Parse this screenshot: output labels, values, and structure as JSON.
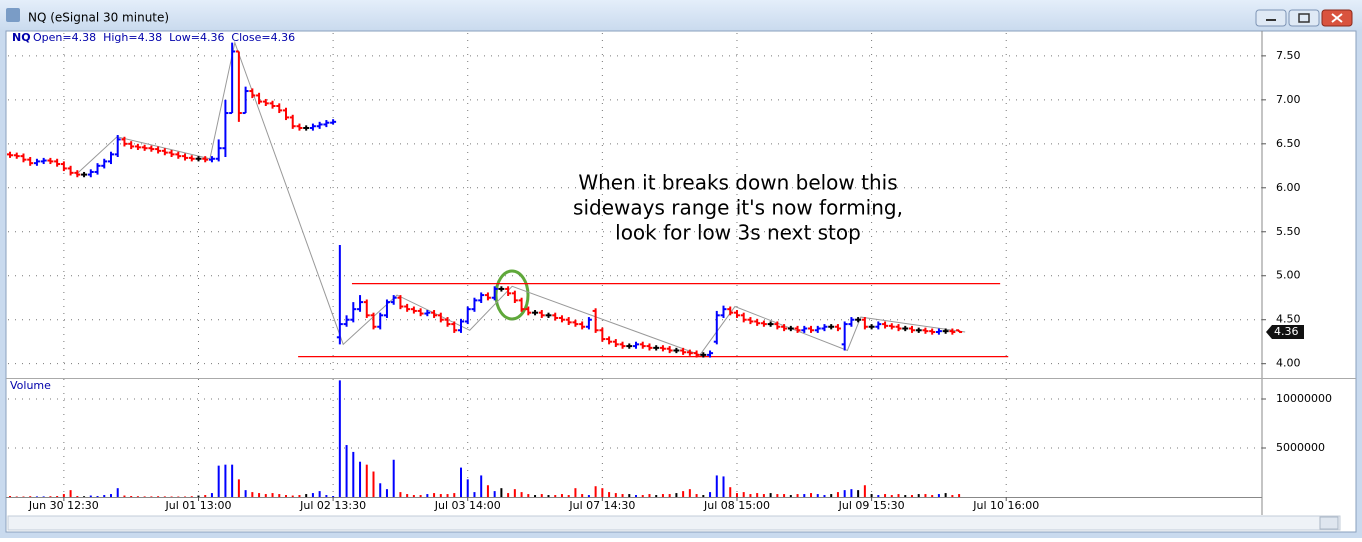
{
  "window": {
    "title": "NQ (eSignal 30 minute)"
  },
  "chart_data": [
    {
      "type": "ohlc",
      "symbol": "NQ",
      "legend": "Open=4.38  High=4.38  Low=4.36  Close=4.36",
      "open": [
        6.38,
        6.37,
        6.36,
        6.32,
        6.28,
        6.3,
        6.31,
        6.3,
        6.27,
        6.22,
        6.17,
        6.15,
        6.15,
        6.18,
        6.25,
        6.3,
        6.38,
        6.55,
        6.5,
        6.47,
        6.46,
        6.45,
        6.44,
        6.42,
        6.4,
        6.38,
        6.36,
        6.34,
        6.33,
        6.33,
        6.32,
        6.33,
        6.45,
        6.85,
        7.55,
        6.85,
        7.1,
        7.05,
        6.98,
        6.96,
        6.93,
        6.88,
        6.8,
        6.7,
        6.68,
        6.68,
        6.7,
        6.72,
        6.74,
        4.3,
        4.45,
        4.5,
        4.62,
        4.7,
        4.55,
        4.42,
        4.55,
        4.7,
        4.75,
        4.65,
        4.62,
        4.6,
        4.57,
        4.58,
        4.55,
        4.5,
        4.45,
        4.38,
        4.48,
        4.62,
        4.72,
        4.78,
        4.75,
        4.85,
        4.85,
        4.8,
        4.72,
        4.62,
        4.58,
        4.58,
        4.55,
        4.55,
        4.52,
        4.5,
        4.47,
        4.45,
        4.42,
        4.6,
        4.38,
        4.28,
        4.25,
        4.22,
        4.2,
        4.2,
        4.22,
        4.2,
        4.18,
        4.18,
        4.17,
        4.15,
        4.15,
        4.13,
        4.12,
        4.1,
        4.1,
        4.25,
        4.55,
        4.62,
        4.58,
        4.55,
        4.5,
        4.48,
        4.46,
        4.45,
        4.45,
        4.42,
        4.4,
        4.4,
        4.38,
        4.4,
        4.38,
        4.4,
        4.42,
        4.42,
        4.22,
        4.45,
        4.5,
        4.5,
        4.42,
        4.42,
        4.45,
        4.43,
        4.42,
        4.4,
        4.4,
        4.38,
        4.38,
        4.37,
        4.36,
        4.37,
        4.37,
        4.38
      ],
      "high": [
        6.41,
        6.4,
        6.39,
        6.35,
        6.33,
        6.34,
        6.34,
        6.33,
        6.3,
        6.25,
        6.2,
        6.18,
        6.21,
        6.28,
        6.33,
        6.41,
        6.6,
        6.58,
        6.53,
        6.5,
        6.49,
        6.48,
        6.47,
        6.45,
        6.43,
        6.41,
        6.39,
        6.37,
        6.36,
        6.36,
        6.36,
        6.55,
        7.0,
        7.65,
        7.55,
        7.15,
        7.13,
        7.08,
        7.01,
        6.99,
        6.96,
        6.91,
        6.83,
        6.73,
        6.71,
        6.73,
        6.75,
        6.77,
        6.78,
        5.35,
        4.55,
        4.7,
        4.78,
        4.73,
        4.58,
        4.58,
        4.73,
        4.78,
        4.78,
        4.68,
        4.65,
        4.63,
        4.61,
        4.61,
        4.58,
        4.53,
        4.48,
        4.51,
        4.65,
        4.75,
        4.81,
        4.81,
        4.88,
        4.88,
        4.88,
        4.83,
        4.75,
        4.65,
        4.61,
        4.61,
        4.58,
        4.58,
        4.55,
        4.53,
        4.5,
        4.48,
        4.53,
        4.63,
        4.41,
        4.31,
        4.28,
        4.25,
        4.23,
        4.25,
        4.25,
        4.23,
        4.21,
        4.21,
        4.2,
        4.18,
        4.18,
        4.16,
        4.15,
        4.13,
        4.15,
        4.6,
        4.66,
        4.65,
        4.61,
        4.58,
        4.53,
        4.51,
        4.49,
        4.48,
        4.48,
        4.45,
        4.43,
        4.43,
        4.43,
        4.43,
        4.43,
        4.45,
        4.45,
        4.45,
        4.48,
        4.53,
        4.53,
        4.53,
        4.45,
        4.48,
        4.48,
        4.46,
        4.45,
        4.43,
        4.43,
        4.41,
        4.41,
        4.4,
        4.4,
        4.4,
        4.4,
        4.38
      ],
      "low": [
        6.34,
        6.33,
        6.29,
        6.25,
        6.25,
        6.27,
        6.27,
        6.24,
        6.19,
        6.14,
        6.12,
        6.12,
        6.12,
        6.15,
        6.22,
        6.27,
        6.35,
        6.47,
        6.44,
        6.43,
        6.42,
        6.41,
        6.39,
        6.37,
        6.35,
        6.33,
        6.31,
        6.3,
        6.3,
        6.29,
        6.29,
        6.3,
        6.35,
        6.85,
        6.75,
        6.85,
        7.02,
        6.95,
        6.93,
        6.9,
        6.85,
        6.77,
        6.67,
        6.65,
        6.65,
        6.65,
        6.67,
        6.69,
        6.72,
        4.22,
        4.42,
        4.47,
        4.59,
        4.52,
        4.39,
        4.39,
        4.52,
        4.67,
        4.62,
        4.59,
        4.57,
        4.54,
        4.54,
        4.52,
        4.47,
        4.42,
        4.35,
        4.35,
        4.45,
        4.59,
        4.69,
        4.72,
        4.72,
        4.82,
        4.77,
        4.69,
        4.59,
        4.55,
        4.55,
        4.52,
        4.52,
        4.49,
        4.47,
        4.44,
        4.42,
        4.39,
        4.39,
        4.35,
        4.25,
        4.22,
        4.19,
        4.17,
        4.17,
        4.17,
        4.17,
        4.15,
        4.15,
        4.14,
        4.12,
        4.12,
        4.1,
        4.09,
        4.07,
        4.07,
        4.07,
        4.22,
        4.52,
        4.55,
        4.52,
        4.47,
        4.45,
        4.43,
        4.42,
        4.42,
        4.39,
        4.37,
        4.37,
        4.35,
        4.35,
        4.35,
        4.35,
        4.37,
        4.39,
        4.37,
        4.15,
        4.42,
        4.47,
        4.39,
        4.39,
        4.39,
        4.4,
        4.39,
        4.37,
        4.37,
        4.35,
        4.35,
        4.34,
        4.33,
        4.33,
        4.34,
        4.33,
        4.36
      ],
      "close": [
        6.37,
        6.36,
        6.32,
        6.28,
        6.3,
        6.31,
        6.3,
        6.27,
        6.22,
        6.17,
        6.15,
        6.15,
        6.18,
        6.25,
        6.3,
        6.38,
        6.55,
        6.5,
        6.47,
        6.46,
        6.45,
        6.44,
        6.42,
        6.4,
        6.38,
        6.36,
        6.34,
        6.33,
        6.33,
        6.32,
        6.33,
        6.45,
        6.85,
        7.55,
        6.85,
        7.1,
        7.05,
        6.98,
        6.96,
        6.93,
        6.88,
        6.8,
        6.7,
        6.68,
        6.68,
        6.7,
        6.72,
        6.74,
        6.75,
        4.45,
        4.5,
        4.62,
        4.7,
        4.55,
        4.42,
        4.55,
        4.7,
        4.75,
        4.65,
        4.62,
        4.6,
        4.57,
        4.58,
        4.55,
        4.5,
        4.45,
        4.38,
        4.48,
        4.62,
        4.72,
        4.78,
        4.75,
        4.85,
        4.85,
        4.8,
        4.72,
        4.62,
        4.58,
        4.58,
        4.55,
        4.55,
        4.52,
        4.5,
        4.47,
        4.45,
        4.42,
        4.5,
        4.38,
        4.28,
        4.25,
        4.22,
        4.2,
        4.2,
        4.22,
        4.2,
        4.18,
        4.18,
        4.17,
        4.15,
        4.15,
        4.13,
        4.12,
        4.1,
        4.1,
        4.12,
        4.55,
        4.62,
        4.58,
        4.55,
        4.5,
        4.48,
        4.46,
        4.45,
        4.45,
        4.42,
        4.4,
        4.4,
        4.38,
        4.4,
        4.38,
        4.4,
        4.42,
        4.42,
        4.4,
        4.45,
        4.5,
        4.5,
        4.42,
        4.42,
        4.45,
        4.43,
        4.42,
        4.4,
        4.4,
        4.38,
        4.38,
        4.37,
        4.36,
        4.37,
        4.37,
        4.36,
        4.36
      ],
      "up_color": "#0000ff",
      "down_color": "#ff0000",
      "flat_color": "#000000",
      "xlim": [
        -0.3,
        186.0
      ],
      "ylim": [
        3.86,
        7.76
      ],
      "yticks": [
        {
          "value": 4.0,
          "label": "4.00"
        },
        {
          "value": 4.5,
          "label": "4.50"
        },
        {
          "value": 5.0,
          "label": "5.00"
        },
        {
          "value": 5.5,
          "label": "5.50"
        },
        {
          "value": 6.0,
          "label": "6.00"
        },
        {
          "value": 6.5,
          "label": "6.50"
        },
        {
          "value": 7.0,
          "label": "7.00"
        },
        {
          "value": 7.5,
          "label": "7.50"
        }
      ],
      "grid": true,
      "last_price": 4.36,
      "hlines": [
        {
          "y": 4.91,
          "x": [
            50.8,
            147.1
          ],
          "color": "#ff0000"
        },
        {
          "y": 4.08,
          "x": [
            42.8,
            148.3
          ],
          "color": "#ff0000"
        }
      ],
      "zigzag": {
        "x": [
          9.8,
          15.9,
          29.7,
          33.4,
          49.5,
          57.5,
          68.3,
          74.6,
          102.5,
          107.7,
          124.4,
          126.4,
          141.9
        ],
        "y": [
          6.15,
          6.58,
          6.33,
          7.65,
          4.22,
          4.78,
          4.38,
          4.88,
          4.1,
          4.65,
          4.15,
          4.53,
          4.36
        ],
        "color": "#999999"
      },
      "annotation": [
        "When it breaks down below this",
        "sideways range it's now forming,",
        "look for low 3s next stop"
      ]
    },
    {
      "type": "bar",
      "title": "Volume",
      "values": [
        100000,
        50000,
        50000,
        80000,
        60000,
        60000,
        80000,
        100000,
        300000,
        700000,
        100000,
        80000,
        150000,
        100000,
        200000,
        300000,
        900000,
        150000,
        100000,
        80000,
        60000,
        60000,
        80000,
        60000,
        50000,
        50000,
        50000,
        80000,
        150000,
        200000,
        400000,
        3200000,
        3300000,
        3300000,
        1800000,
        700000,
        500000,
        400000,
        300000,
        400000,
        300000,
        200000,
        150000,
        200000,
        300000,
        400000,
        600000,
        200000,
        100000,
        11900000,
        5300000,
        4600000,
        3600000,
        3300000,
        2600000,
        1400000,
        800000,
        3800000,
        500000,
        300000,
        200000,
        200000,
        300000,
        400000,
        300000,
        300000,
        400000,
        3000000,
        1800000,
        500000,
        2200000,
        1200000,
        600000,
        900000,
        400000,
        800000,
        500000,
        300000,
        200000,
        300000,
        200000,
        200000,
        300000,
        200000,
        900000,
        300000,
        200000,
        1100000,
        900000,
        500000,
        400000,
        300000,
        300000,
        200000,
        200000,
        300000,
        200000,
        300000,
        300000,
        400000,
        600000,
        800000,
        300000,
        200000,
        500000,
        2200000,
        2100000,
        1000000,
        400000,
        500000,
        300000,
        400000,
        300000,
        400000,
        300000,
        300000,
        200000,
        300000,
        300000,
        400000,
        300000,
        200000,
        300000,
        500000,
        700000,
        800000,
        700000,
        1200000,
        300000,
        200000,
        300000,
        200000,
        300000,
        200000,
        200000,
        300000,
        300000,
        200000,
        300000,
        400000,
        200000,
        300000
      ],
      "xlim": [
        -0.3,
        186.0
      ],
      "ylim": [
        0,
        12040000
      ],
      "yticks": [
        5000000,
        10000000
      ],
      "xticks": [
        {
          "value": 8,
          "label": "Jun 30 12:30"
        },
        {
          "value": 28,
          "label": "Jul 01 13:00"
        },
        {
          "value": 48,
          "label": "Jul 02 13:30"
        },
        {
          "value": 68,
          "label": "Jul 03 14:00"
        },
        {
          "value": 88,
          "label": "Jul 07 14:30"
        },
        {
          "value": 108,
          "label": "Jul 08 15:00"
        },
        {
          "value": 128,
          "label": "Jul 09 15:30"
        },
        {
          "value": 148,
          "label": "Jul 10 16:00"
        }
      ]
    }
  ]
}
